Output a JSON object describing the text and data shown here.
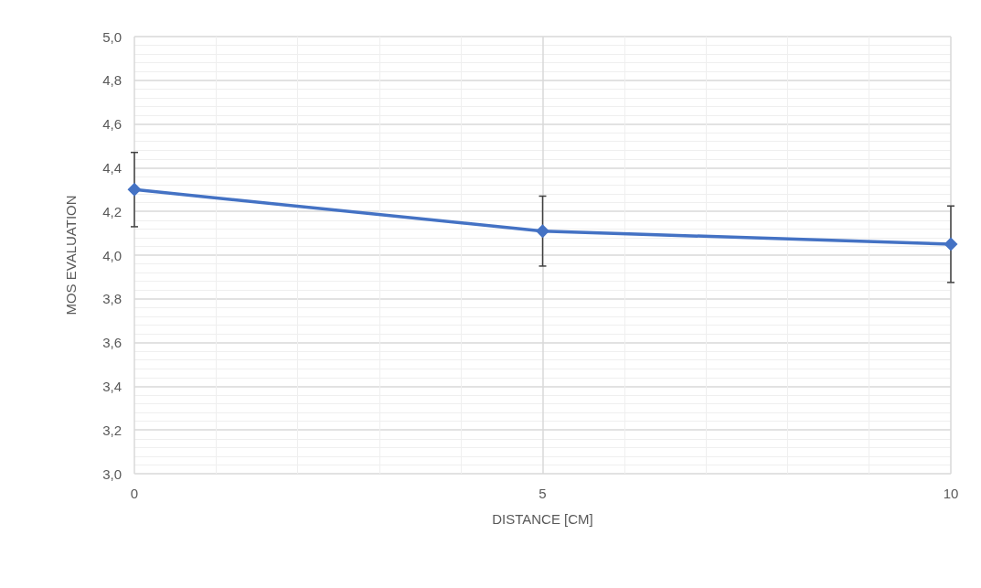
{
  "chart_data": {
    "type": "line",
    "xlabel": "DISTANCE [CM]",
    "ylabel": "MOS EVALUATION",
    "x": [
      0,
      5,
      10
    ],
    "series": [
      {
        "color": "#4472c4",
        "values": [
          4.3,
          4.11,
          4.05
        ],
        "errors": [
          0.17,
          0.16,
          0.175
        ]
      }
    ],
    "xlim": [
      0,
      10
    ],
    "xticks": [
      0,
      5,
      10
    ],
    "ylim": [
      3,
      5
    ],
    "yticks": [
      {
        "value": 3,
        "label": "3,0"
      },
      {
        "value": 3.2,
        "label": "3,2"
      },
      {
        "value": 3.4,
        "label": "3,4"
      },
      {
        "value": 3.6,
        "label": "3,6"
      },
      {
        "value": 3.8,
        "label": "3,8"
      },
      {
        "value": 4,
        "label": "4,0"
      },
      {
        "value": 4.2,
        "label": "4,2"
      },
      {
        "value": 4.4,
        "label": "4,4"
      },
      {
        "value": 4.6,
        "label": "4,6"
      },
      {
        "value": 4.8,
        "label": "4,8"
      },
      {
        "value": 5,
        "label": "5,0"
      }
    ],
    "grid": true,
    "marker": "diamond",
    "line_style": "solid"
  }
}
